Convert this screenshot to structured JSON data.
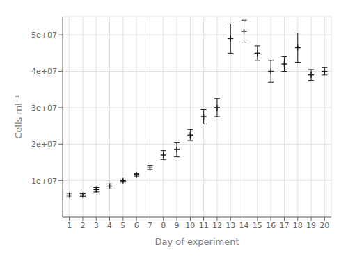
{
  "chart_data": {
    "type": "scatter",
    "xlabel": "Day of experiment",
    "ylabel": "Cells ml⁻¹",
    "x": [
      1,
      2,
      3,
      4,
      5,
      6,
      7,
      8,
      9,
      10,
      11,
      12,
      13,
      14,
      15,
      16,
      17,
      18,
      19,
      20
    ],
    "values": [
      6000000,
      6000000,
      7500000,
      8500000,
      10000000,
      11500000,
      13500000,
      17000000,
      18500000,
      22500000,
      27500000,
      30000000,
      49000000,
      51000000,
      45000000,
      40000000,
      42000000,
      46500000,
      39000000,
      40000000
    ],
    "errors": [
      500000,
      400000,
      600000,
      600000,
      400000,
      400000,
      500000,
      1200000,
      2000000,
      1500000,
      2000000,
      2500000,
      4000000,
      3000000,
      2000000,
      3000000,
      2000000,
      4000000,
      1500000,
      1000000
    ],
    "color": "#1a1a1a",
    "marker": "plus",
    "xlim": [
      0.5,
      20.5
    ],
    "ylim": [
      0,
      55000000
    ],
    "xticks": [
      1,
      2,
      3,
      4,
      5,
      6,
      7,
      8,
      9,
      10,
      11,
      12,
      13,
      14,
      15,
      16,
      17,
      18,
      19,
      20
    ],
    "yticks": [
      {
        "value": 10000000,
        "label": "1e+07"
      },
      {
        "value": 20000000,
        "label": "2e+07"
      },
      {
        "value": 30000000,
        "label": "3e+07"
      },
      {
        "value": 40000000,
        "label": "4e+07"
      },
      {
        "value": 50000000,
        "label": "5e+07"
      }
    ],
    "grid": true
  }
}
